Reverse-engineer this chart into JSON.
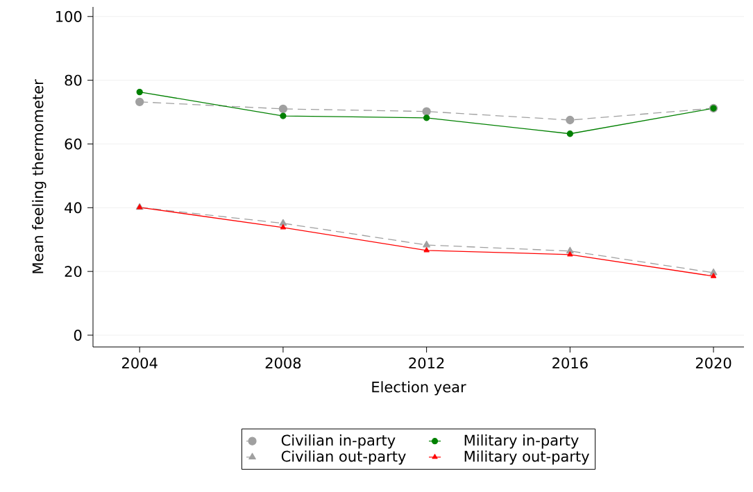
{
  "chart_data": {
    "type": "line",
    "xlabel": "Election year",
    "ylabel": "Mean feeling thermometer",
    "x": [
      2004,
      2008,
      2012,
      2016,
      2020
    ],
    "xlim": [
      2002.7,
      2020.85
    ],
    "ylim": [
      -3.7,
      103
    ],
    "xticks": [
      2004,
      2008,
      2012,
      2016,
      2020
    ],
    "yticks": [
      0,
      20,
      40,
      60,
      80,
      100
    ],
    "grid": "y",
    "legend": "bottom",
    "series": [
      {
        "name": "Civilian in-party",
        "color": "#a0a0a0",
        "marker": "circle",
        "line_style": "dashed",
        "values": [
          73.2,
          71.0,
          70.2,
          67.5,
          71.2
        ]
      },
      {
        "name": "Military in-party",
        "color": "#008000",
        "marker": "circle",
        "line_style": "solid",
        "values": [
          76.3,
          68.8,
          68.2,
          63.2,
          71.2
        ]
      },
      {
        "name": "Civilian out-party",
        "color": "#a0a0a0",
        "marker": "triangle",
        "line_style": "dashed",
        "values": [
          40.1,
          35.1,
          28.3,
          26.4,
          19.6
        ]
      },
      {
        "name": "Military out-party",
        "color": "#ff0000",
        "marker": "triangle",
        "line_style": "solid",
        "values": [
          40.1,
          33.8,
          26.6,
          25.3,
          18.5
        ]
      }
    ]
  }
}
